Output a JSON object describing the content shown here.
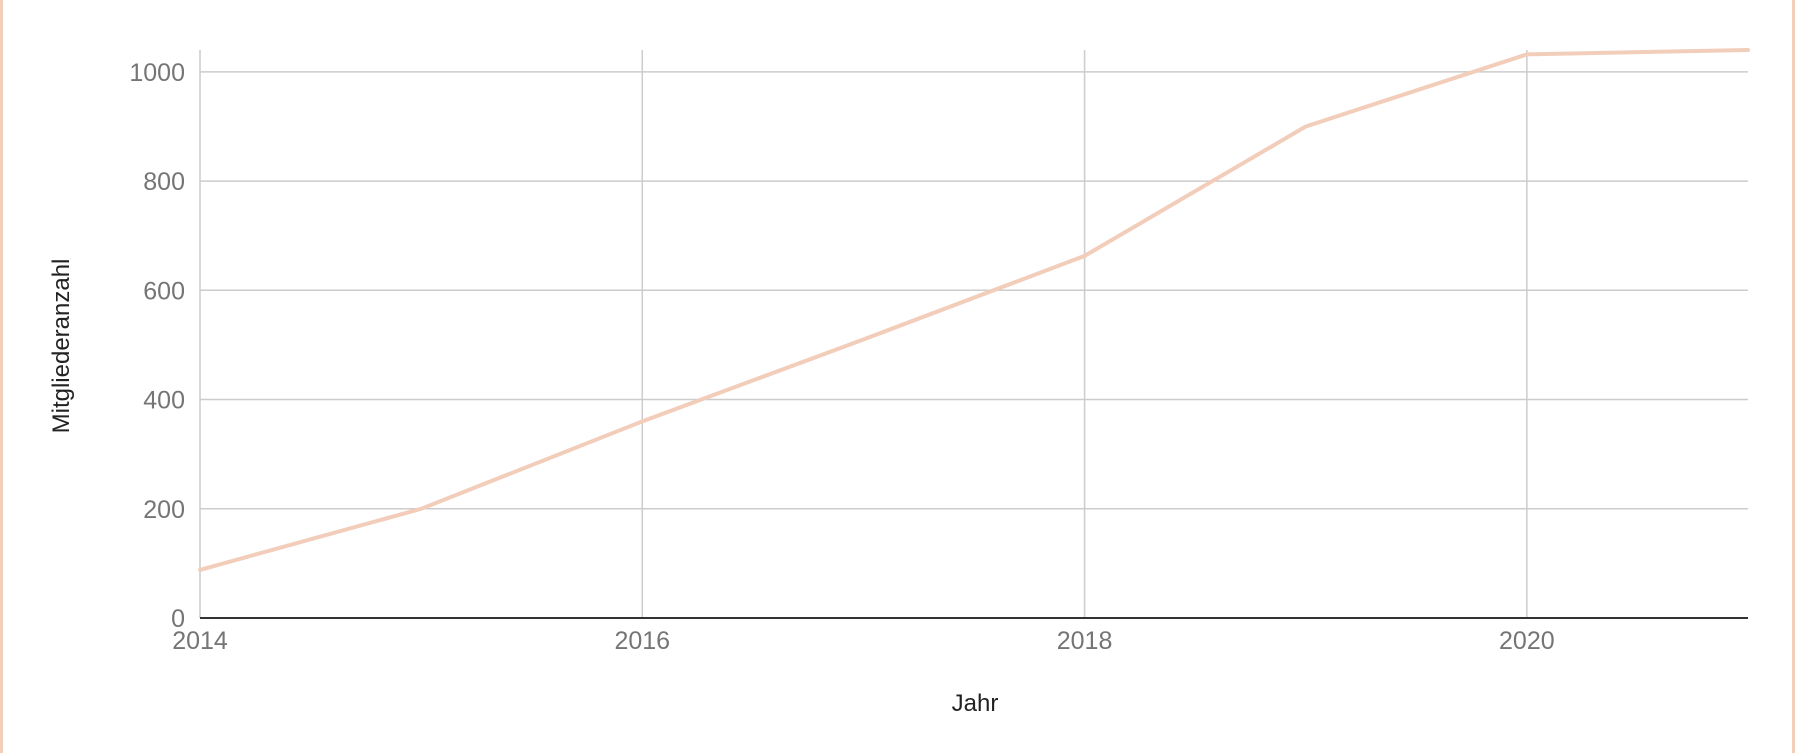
{
  "chart_data": {
    "type": "line",
    "xlabel": "Jahr",
    "ylabel": "Mitgliederanzahl",
    "xlim": [
      2014,
      2021
    ],
    "ylim": [
      0,
      1040
    ],
    "x_ticks": [
      "2014",
      "2016",
      "2018",
      "2020"
    ],
    "y_ticks": [
      "0",
      "200",
      "400",
      "600",
      "800",
      "1000"
    ],
    "grid": true,
    "legend": "none",
    "series": [
      {
        "color": "#f2cdb9",
        "x": [
          2014,
          2015,
          2016,
          2017,
          2018,
          2019,
          2020,
          2021
        ],
        "y": [
          88,
          200,
          360,
          510,
          663,
          900,
          1032,
          1040
        ]
      }
    ]
  }
}
